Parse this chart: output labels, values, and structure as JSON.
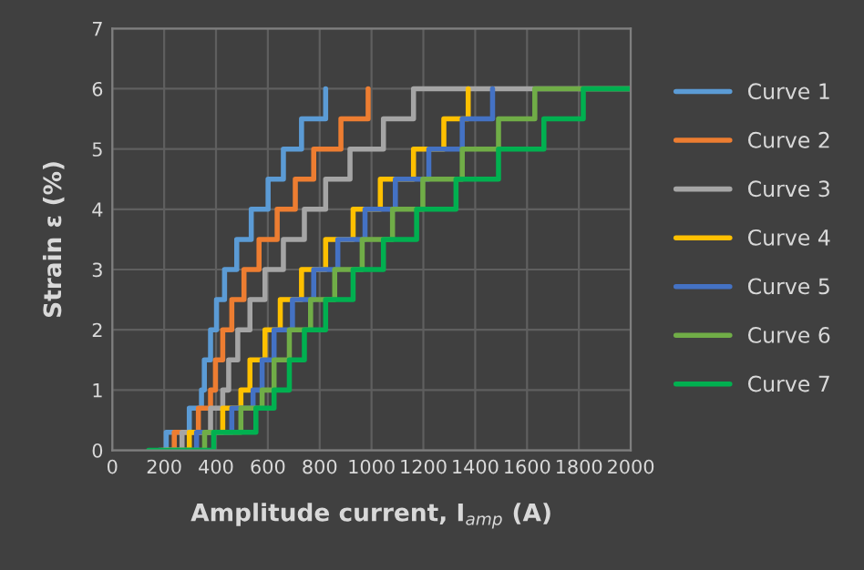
{
  "chart_data": {
    "type": "step",
    "xlabel": "Amplitude current, I$_{amp}$ (A)",
    "ylabel": "Strain ε (%)",
    "xlim": [
      0,
      2000
    ],
    "xticks": [
      0,
      200,
      400,
      600,
      800,
      1000,
      1200,
      1400,
      1600,
      1800,
      2000
    ],
    "ylim": [
      0,
      7
    ],
    "yticks": [
      0,
      1,
      2,
      3,
      4,
      5,
      6,
      7
    ],
    "grid": true,
    "legend": "right",
    "series": [
      {
        "name": "Curve 1",
        "color": "#5b9bd5",
        "x": [
          180,
          208,
          297,
          344,
          355,
          379,
          402,
          433,
          480,
          536,
          601,
          660,
          730,
          823
        ],
        "values": [
          0,
          0.3,
          0.7,
          1,
          1.5,
          2,
          2.5,
          3,
          3.5,
          4,
          4.5,
          5,
          5.5,
          6
        ]
      },
      {
        "name": "Curve 2",
        "color": "#ed7d31",
        "x": [
          190,
          239,
          332,
          379,
          398,
          426,
          461,
          508,
          566,
          636,
          706,
          777,
          882,
          987
        ],
        "values": [
          0,
          0.3,
          0.7,
          1,
          1.5,
          2,
          2.5,
          3,
          3.5,
          4,
          4.5,
          5,
          5.5,
          6
        ]
      },
      {
        "name": "Curve 3",
        "color": "#a5a5a5",
        "x": [
          200,
          269,
          379,
          426,
          449,
          484,
          531,
          589,
          660,
          741,
          823,
          917,
          1046,
          1162,
          2000
        ],
        "values": [
          0,
          0.3,
          0.7,
          1,
          1.5,
          2,
          2.5,
          3,
          3.5,
          4,
          4.5,
          5,
          5.5,
          6,
          6
        ]
      },
      {
        "name": "Curve 4",
        "color": "#ffc000",
        "x": [
          210,
          297,
          426,
          496,
          531,
          589,
          648,
          730,
          823,
          929,
          1034,
          1162,
          1279,
          1373
        ],
        "values": [
          0,
          0.3,
          0.7,
          1,
          1.5,
          2,
          2.5,
          3,
          3.5,
          4,
          4.5,
          5,
          5.5,
          6
        ]
      },
      {
        "name": "Curve 5",
        "color": "#4472c4",
        "x": [
          220,
          325,
          461,
          543,
          578,
          624,
          695,
          777,
          870,
          975,
          1092,
          1221,
          1350,
          1467
        ],
        "values": [
          0,
          0.3,
          0.7,
          1,
          1.5,
          2,
          2.5,
          3,
          3.5,
          4,
          4.5,
          5,
          5.5,
          6
        ]
      },
      {
        "name": "Curve 6",
        "color": "#70ad47",
        "x": [
          230,
          356,
          496,
          578,
          624,
          683,
          765,
          858,
          964,
          1081,
          1198,
          1350,
          1490,
          1630,
          2000
        ],
        "values": [
          0,
          0.3,
          0.7,
          1,
          1.5,
          2,
          2.5,
          3,
          3.5,
          4,
          4.5,
          5,
          5.5,
          6,
          6
        ]
      },
      {
        "name": "Curve 7",
        "color": "#00b050",
        "x": [
          140,
          391,
          554,
          624,
          683,
          741,
          823,
          929,
          1046,
          1174,
          1326,
          1490,
          1665,
          1817,
          2000
        ],
        "values": [
          0,
          0.3,
          0.7,
          1,
          1.5,
          2,
          2.5,
          3,
          3.5,
          4,
          4.5,
          5,
          5.5,
          6,
          6
        ]
      }
    ]
  }
}
